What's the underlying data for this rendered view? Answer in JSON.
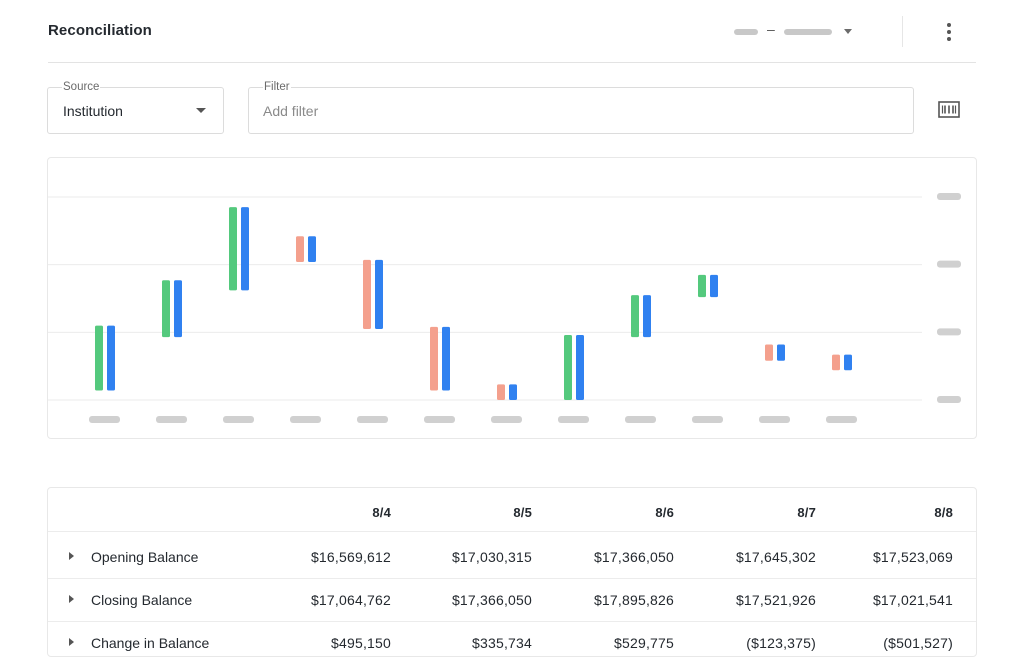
{
  "header": {
    "title": "Reconciliation"
  },
  "filters": {
    "source": {
      "label": "Source",
      "value": "Institution"
    },
    "filter": {
      "label": "Filter",
      "placeholder": "Add filter"
    }
  },
  "chart_data": {
    "type": "bar",
    "xlabel": "",
    "ylabel": "",
    "grid": true,
    "y_min": 0,
    "y_max": 3,
    "colors": {
      "increase": "#54c97d",
      "decrease": "#f4a08d",
      "balance": "#3081f0"
    },
    "bars": [
      {
        "low": 0.14,
        "high": 1.1,
        "direction": "increase"
      },
      {
        "low": 0.93,
        "high": 1.77,
        "direction": "increase"
      },
      {
        "low": 1.62,
        "high": 2.85,
        "direction": "increase"
      },
      {
        "low": 2.04,
        "high": 2.42,
        "direction": "decrease"
      },
      {
        "low": 1.05,
        "high": 2.07,
        "direction": "decrease"
      },
      {
        "low": 0.14,
        "high": 1.08,
        "direction": "decrease"
      },
      {
        "low": 0.0,
        "high": 0.23,
        "direction": "decrease"
      },
      {
        "low": 0.0,
        "high": 0.96,
        "direction": "increase"
      },
      {
        "low": 0.93,
        "high": 1.55,
        "direction": "increase"
      },
      {
        "low": 1.52,
        "high": 1.85,
        "direction": "increase"
      },
      {
        "low": 0.58,
        "high": 0.82,
        "direction": "decrease"
      },
      {
        "low": 0.44,
        "high": 0.67,
        "direction": "decrease"
      }
    ]
  },
  "table": {
    "columns": [
      "8/4",
      "8/5",
      "8/6",
      "8/7",
      "8/8"
    ],
    "rows": [
      {
        "label": "Opening Balance",
        "values": [
          "$16,569,612",
          "$17,030,315",
          "$17,366,050",
          "$17,645,302",
          "$17,523,069"
        ]
      },
      {
        "label": "Closing Balance",
        "values": [
          "$17,064,762",
          "$17,366,050",
          "$17,895,826",
          "$17,521,926",
          "$17,021,541"
        ]
      },
      {
        "label": "Change in Balance",
        "values": [
          "$495,150",
          "$335,734",
          "$529,775",
          "($123,375)",
          "($501,527)"
        ]
      }
    ]
  }
}
